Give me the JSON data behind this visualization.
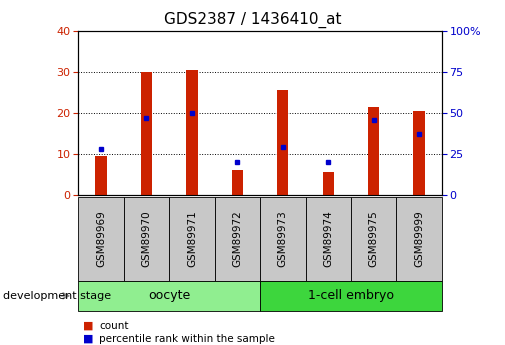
{
  "title": "GDS2387 / 1436410_at",
  "samples": [
    "GSM89969",
    "GSM89970",
    "GSM89971",
    "GSM89972",
    "GSM89973",
    "GSM89974",
    "GSM89975",
    "GSM89999"
  ],
  "counts": [
    9.5,
    30.0,
    30.5,
    6.0,
    25.5,
    5.5,
    21.5,
    20.5
  ],
  "percentiles": [
    28,
    47,
    50,
    20,
    29,
    20,
    46,
    37
  ],
  "groups": [
    {
      "label": "oocyte",
      "start": 0,
      "end": 4,
      "color": "#90ee90"
    },
    {
      "label": "1-cell embryo",
      "start": 4,
      "end": 8,
      "color": "#3dd63d"
    }
  ],
  "bar_color": "#cc2200",
  "dot_color": "#0000cc",
  "left_ylim": [
    0,
    40
  ],
  "right_ylim": [
    0,
    100
  ],
  "left_yticks": [
    0,
    10,
    20,
    30,
    40
  ],
  "right_yticks": [
    0,
    25,
    50,
    75,
    100
  ],
  "right_yticklabels": [
    "0",
    "25",
    "50",
    "75",
    "100%"
  ],
  "bar_width": 0.25,
  "background_color": "#ffffff",
  "plot_bg_color": "#ffffff",
  "xlabel_area_color": "#c8c8c8",
  "group_label_fontsize": 9,
  "tick_fontsize": 8,
  "title_fontsize": 11,
  "dev_stage_text": "development stage",
  "legend_items": [
    {
      "color": "#cc2200",
      "label": "count"
    },
    {
      "color": "#0000cc",
      "label": "percentile rank within the sample"
    }
  ]
}
